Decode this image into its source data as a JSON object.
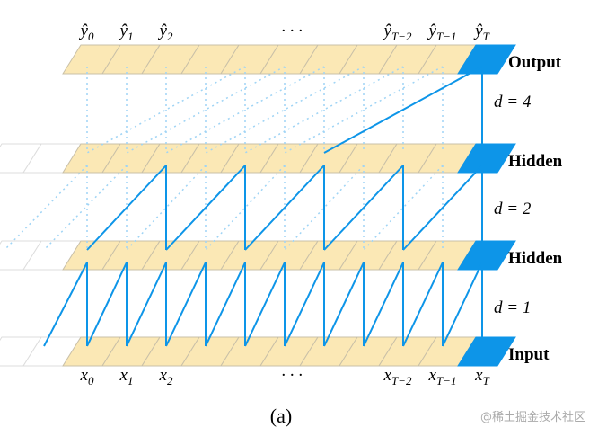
{
  "outputs": [
    {
      "symbol": "ŷ",
      "subscript": "0"
    },
    {
      "symbol": "ŷ",
      "subscript": "1"
    },
    {
      "symbol": "ŷ",
      "subscript": "2"
    },
    {
      "symbol": "· · ·"
    },
    {
      "symbol": "ŷ",
      "subscript": "T−2"
    },
    {
      "symbol": "ŷ",
      "subscript": "T−1"
    },
    {
      "symbol": "ŷ",
      "subscript": "T"
    }
  ],
  "inputs": [
    {
      "symbol": "x",
      "subscript": "0"
    },
    {
      "symbol": "x",
      "subscript": "1"
    },
    {
      "symbol": "x",
      "subscript": "2"
    },
    {
      "symbol": "· · ·"
    },
    {
      "symbol": "x",
      "subscript": "T−2"
    },
    {
      "symbol": "x",
      "subscript": "T−1"
    },
    {
      "symbol": "x",
      "subscript": "T"
    }
  ],
  "layers": [
    "Output",
    "Hidden",
    "Hidden",
    "Input"
  ],
  "dilations": [
    "d = 4",
    "d = 2",
    "d = 1"
  ],
  "caption": "(a)",
  "watermark": "@稀土掘金技术社区"
}
